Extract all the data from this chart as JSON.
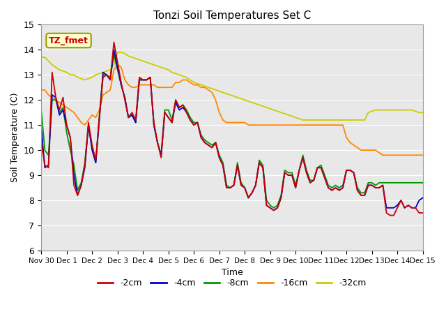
{
  "title": "Tonzi Soil Temperatures Set C",
  "xlabel": "Time",
  "ylabel": "Soil Temperature (C)",
  "ylim": [
    6.0,
    15.0
  ],
  "yticks": [
    6.0,
    7.0,
    8.0,
    9.0,
    10.0,
    11.0,
    12.0,
    13.0,
    14.0,
    15.0
  ],
  "xtick_labels": [
    "Nov 30",
    "Dec 1",
    "Dec 2",
    "Dec 3",
    "Dec 4",
    "Dec 5",
    "Dec 6",
    "Dec 7",
    "Dec 8",
    "Dec 9",
    "Dec 10",
    "Dec 11",
    "Dec 12",
    "Dec 13",
    "Dec 14",
    "Dec 15"
  ],
  "colors": {
    "-2cm": "#cc0000",
    "-4cm": "#0000cc",
    "-8cm": "#009900",
    "-16cm": "#ff8800",
    "-32cm": "#cccc00"
  },
  "legend_box_color": "#ffffcc",
  "legend_box_edge": "#999900",
  "plot_bg_color": "#e8e8e8",
  "series": {
    "-2cm": [
      10.3,
      9.4,
      9.3,
      13.1,
      12.1,
      11.6,
      12.1,
      11.0,
      10.5,
      8.6,
      8.2,
      8.6,
      9.4,
      11.1,
      10.2,
      9.6,
      11.3,
      12.9,
      13.0,
      12.8,
      14.3,
      13.5,
      12.7,
      12.0,
      11.3,
      11.5,
      11.2,
      12.9,
      12.8,
      12.8,
      12.9,
      11.1,
      10.3,
      9.7,
      11.5,
      11.3,
      11.1,
      12.0,
      11.7,
      11.8,
      11.5,
      11.2,
      11.0,
      11.1,
      10.5,
      10.3,
      10.2,
      10.1,
      10.3,
      9.7,
      9.4,
      8.5,
      8.5,
      8.6,
      9.4,
      8.6,
      8.5,
      8.1,
      8.3,
      8.6,
      9.5,
      9.3,
      7.8,
      7.7,
      7.6,
      7.7,
      8.1,
      9.1,
      9.0,
      9.0,
      8.5,
      9.2,
      9.7,
      9.1,
      8.7,
      8.8,
      9.3,
      9.3,
      8.9,
      8.5,
      8.4,
      8.5,
      8.4,
      8.5,
      9.2,
      9.2,
      9.1,
      8.4,
      8.2,
      8.2,
      8.6,
      8.6,
      8.5,
      8.5,
      8.6,
      7.5,
      7.4,
      7.4,
      7.7,
      8.0,
      7.7,
      7.8,
      7.7,
      7.7,
      7.5,
      7.5
    ],
    "-4cm": [
      10.9,
      9.3,
      9.4,
      12.2,
      12.1,
      11.4,
      11.6,
      11.0,
      10.5,
      9.0,
      8.2,
      8.6,
      9.3,
      11.0,
      10.0,
      9.5,
      11.2,
      13.1,
      13.0,
      12.8,
      14.0,
      13.3,
      12.6,
      12.1,
      11.3,
      11.4,
      11.1,
      12.8,
      12.8,
      12.8,
      12.9,
      11.0,
      10.3,
      9.8,
      11.5,
      11.3,
      11.1,
      11.9,
      11.6,
      11.7,
      11.5,
      11.2,
      11.0,
      11.1,
      10.5,
      10.3,
      10.2,
      10.1,
      10.3,
      9.7,
      9.4,
      8.5,
      8.5,
      8.6,
      9.4,
      8.6,
      8.5,
      8.1,
      8.3,
      8.6,
      9.5,
      9.3,
      7.8,
      7.7,
      7.6,
      7.7,
      8.1,
      9.1,
      9.0,
      9.0,
      8.5,
      9.2,
      9.7,
      9.1,
      8.7,
      8.8,
      9.3,
      9.3,
      8.9,
      8.5,
      8.4,
      8.5,
      8.4,
      8.5,
      9.2,
      9.2,
      9.1,
      8.4,
      8.2,
      8.2,
      8.6,
      8.6,
      8.5,
      8.5,
      8.6,
      7.7,
      7.7,
      7.7,
      7.8,
      8.0,
      7.7,
      7.8,
      7.7,
      7.7,
      8.0,
      8.1
    ],
    "-8cm": [
      11.6,
      10.0,
      9.8,
      12.0,
      12.0,
      11.5,
      11.7,
      10.7,
      10.0,
      9.4,
      8.4,
      8.7,
      9.5,
      11.0,
      10.1,
      9.5,
      11.4,
      13.0,
      13.0,
      12.9,
      13.8,
      13.2,
      12.6,
      12.1,
      11.3,
      11.4,
      11.1,
      12.8,
      12.8,
      12.8,
      12.9,
      11.0,
      10.3,
      9.8,
      11.6,
      11.6,
      11.2,
      12.0,
      11.7,
      11.8,
      11.6,
      11.3,
      11.1,
      11.1,
      10.6,
      10.4,
      10.3,
      10.2,
      10.3,
      9.8,
      9.5,
      8.6,
      8.5,
      8.6,
      9.5,
      8.7,
      8.5,
      8.1,
      8.3,
      8.6,
      9.6,
      9.4,
      8.0,
      7.8,
      7.7,
      7.8,
      8.2,
      9.2,
      9.1,
      9.1,
      8.6,
      9.2,
      9.8,
      9.2,
      8.8,
      8.8,
      9.3,
      9.4,
      9.0,
      8.6,
      8.5,
      8.6,
      8.5,
      8.6,
      9.2,
      9.2,
      9.1,
      8.5,
      8.3,
      8.3,
      8.7,
      8.7,
      8.6,
      8.7,
      8.7,
      8.7,
      8.7,
      8.7,
      8.7,
      8.7,
      8.7,
      8.7,
      8.7,
      8.7,
      8.7,
      8.7
    ],
    "-16cm": [
      12.4,
      12.4,
      12.2,
      12.1,
      12.0,
      11.9,
      11.8,
      11.7,
      11.6,
      11.5,
      11.3,
      11.1,
      11.0,
      11.2,
      11.4,
      11.3,
      11.6,
      12.2,
      12.3,
      12.4,
      13.2,
      13.4,
      13.3,
      12.8,
      12.6,
      12.5,
      12.5,
      12.6,
      12.6,
      12.6,
      12.6,
      12.6,
      12.5,
      12.5,
      12.5,
      12.5,
      12.5,
      12.7,
      12.7,
      12.8,
      12.8,
      12.7,
      12.6,
      12.6,
      12.5,
      12.5,
      12.4,
      12.3,
      12.0,
      11.5,
      11.2,
      11.1,
      11.1,
      11.1,
      11.1,
      11.1,
      11.1,
      11.0,
      11.0,
      11.0,
      11.0,
      11.0,
      11.0,
      11.0,
      11.0,
      11.0,
      11.0,
      11.0,
      11.0,
      11.0,
      11.0,
      11.0,
      11.0,
      11.0,
      11.0,
      11.0,
      11.0,
      11.0,
      11.0,
      11.0,
      11.0,
      11.0,
      11.0,
      11.0,
      10.5,
      10.3,
      10.2,
      10.1,
      10.0,
      10.0,
      10.0,
      10.0,
      10.0,
      9.9,
      9.8,
      9.8,
      9.8,
      9.8,
      9.8,
      9.8,
      9.8,
      9.8,
      9.8,
      9.8,
      9.8,
      9.8
    ],
    "-32cm": [
      13.7,
      13.7,
      13.55,
      13.4,
      13.3,
      13.2,
      13.15,
      13.1,
      13.0,
      13.0,
      12.9,
      12.85,
      12.8,
      12.85,
      12.9,
      13.0,
      13.05,
      13.1,
      13.15,
      13.2,
      13.4,
      13.9,
      13.9,
      13.85,
      13.75,
      13.7,
      13.65,
      13.6,
      13.55,
      13.5,
      13.45,
      13.4,
      13.35,
      13.3,
      13.25,
      13.2,
      13.1,
      13.05,
      13.0,
      12.95,
      12.9,
      12.8,
      12.7,
      12.65,
      12.6,
      12.55,
      12.5,
      12.45,
      12.4,
      12.35,
      12.3,
      12.25,
      12.2,
      12.15,
      12.1,
      12.05,
      12.0,
      11.95,
      11.9,
      11.85,
      11.8,
      11.75,
      11.7,
      11.65,
      11.6,
      11.55,
      11.5,
      11.45,
      11.4,
      11.35,
      11.3,
      11.25,
      11.2,
      11.2,
      11.2,
      11.2,
      11.2,
      11.2,
      11.2,
      11.2,
      11.2,
      11.2,
      11.2,
      11.2,
      11.2,
      11.2,
      11.2,
      11.2,
      11.2,
      11.2,
      11.5,
      11.55,
      11.6,
      11.6,
      11.6,
      11.6,
      11.6,
      11.6,
      11.6,
      11.6,
      11.6,
      11.6,
      11.6,
      11.55,
      11.5,
      11.5
    ]
  }
}
